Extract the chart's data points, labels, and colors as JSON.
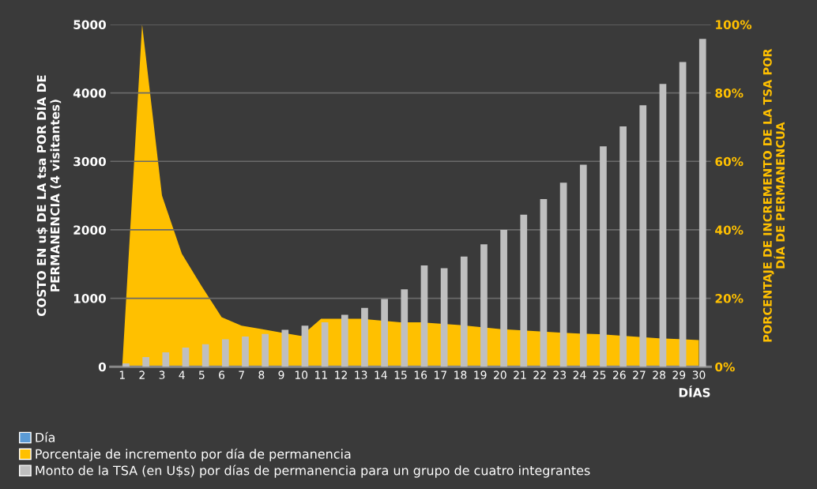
{
  "chart_data": {
    "type": "bar",
    "categories": [
      "1",
      "2",
      "3",
      "4",
      "5",
      "6",
      "7",
      "8",
      "9",
      "10",
      "11",
      "12",
      "13",
      "14",
      "15",
      "16",
      "17",
      "18",
      "19",
      "20",
      "21",
      "22",
      "23",
      "24",
      "25",
      "26",
      "27",
      "28",
      "29",
      "30"
    ],
    "xlabel": "DÍAS",
    "ylabel": "COSTO EN u$ DE LA tsa POR DÍA DE\nPERMANENCIA (4 visitantes)",
    "y2label": "PORCENTAJE DE INCREMENTO DE LA TSA POR\nDÍA DE PERMANENCUA",
    "ylim": [
      0,
      5000
    ],
    "yticks": [
      0,
      1000,
      2000,
      3000,
      4000,
      5000
    ],
    "y2lim": [
      0,
      100
    ],
    "y2ticks": [
      {
        "value": 0,
        "label": "0%"
      },
      {
        "value": 20,
        "label": "20%"
      },
      {
        "value": 40,
        "label": "40%"
      },
      {
        "value": 60,
        "label": "60%"
      },
      {
        "value": 80,
        "label": "80%"
      },
      {
        "value": 100,
        "label": "100%"
      }
    ],
    "grid": "y",
    "legend": "bottom",
    "series": [
      {
        "name": "Día",
        "color": "#5b9bd5",
        "values": [
          null,
          null,
          null,
          null,
          null,
          null,
          null,
          null,
          null,
          null,
          null,
          null,
          null,
          null,
          null,
          null,
          null,
          null,
          null,
          null,
          null,
          null,
          null,
          null,
          null,
          null,
          null,
          null,
          null,
          null
        ]
      },
      {
        "name": "Porcentaje de incremento por día de permanencia",
        "color": "#ffc000",
        "type": "area",
        "axis": "y2",
        "values": [
          0,
          100,
          50,
          33,
          23.5,
          14.5,
          12,
          11,
          10,
          9,
          14,
          14,
          14,
          13.5,
          13,
          13,
          12.6,
          12.2,
          11.6,
          11,
          10.7,
          10.3,
          10,
          9.7,
          9.5,
          9.1,
          8.7,
          8.3,
          8.1,
          7.8
        ]
      },
      {
        "name": "Monto de la TSA (en U$s) por días de permanencia para un grupo de cuatro integrantes",
        "color": "#bfbfbf",
        "values": [
          50,
          140,
          210,
          280,
          330,
          400,
          440,
          480,
          540,
          600,
          650,
          760,
          860,
          990,
          1130,
          1480,
          1440,
          1610,
          1790,
          2000,
          2220,
          2450,
          2690,
          2950,
          3220,
          3510,
          3820,
          4130,
          4450,
          4790
        ]
      }
    ]
  }
}
